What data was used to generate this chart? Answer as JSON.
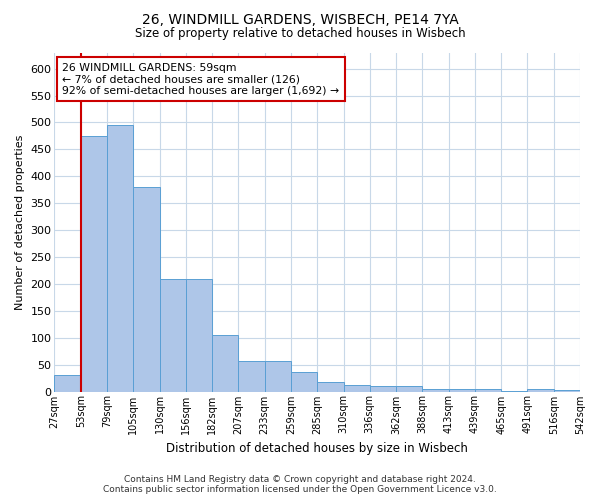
{
  "title1": "26, WINDMILL GARDENS, WISBECH, PE14 7YA",
  "title2": "Size of property relative to detached houses in Wisbech",
  "xlabel": "Distribution of detached houses by size in Wisbech",
  "ylabel": "Number of detached properties",
  "footer1": "Contains HM Land Registry data © Crown copyright and database right 2024.",
  "footer2": "Contains public sector information licensed under the Open Government Licence v3.0.",
  "annotation_line1": "26 WINDMILL GARDENS: 59sqm",
  "annotation_line2": "← 7% of detached houses are smaller (126)",
  "annotation_line3": "92% of semi-detached houses are larger (1,692) →",
  "bar_values": [
    30,
    475,
    495,
    380,
    210,
    210,
    105,
    57,
    57,
    37,
    18,
    13,
    10,
    10,
    5,
    5,
    5,
    1,
    5,
    3
  ],
  "bin_labels": [
    "27sqm",
    "53sqm",
    "79sqm",
    "105sqm",
    "130sqm",
    "156sqm",
    "182sqm",
    "207sqm",
    "233sqm",
    "259sqm",
    "285sqm",
    "310sqm",
    "336sqm",
    "362sqm",
    "388sqm",
    "413sqm",
    "439sqm",
    "465sqm",
    "491sqm",
    "516sqm",
    "542sqm"
  ],
  "bar_color": "#aec6e8",
  "bar_edge_color": "#5a9fd4",
  "marker_color": "#cc0000",
  "annotation_box_color": "#cc0000",
  "background_color": "#ffffff",
  "grid_color": "#c8d8e8",
  "ylim": [
    0,
    630
  ],
  "yticks": [
    0,
    50,
    100,
    150,
    200,
    250,
    300,
    350,
    400,
    450,
    500,
    550,
    600
  ]
}
